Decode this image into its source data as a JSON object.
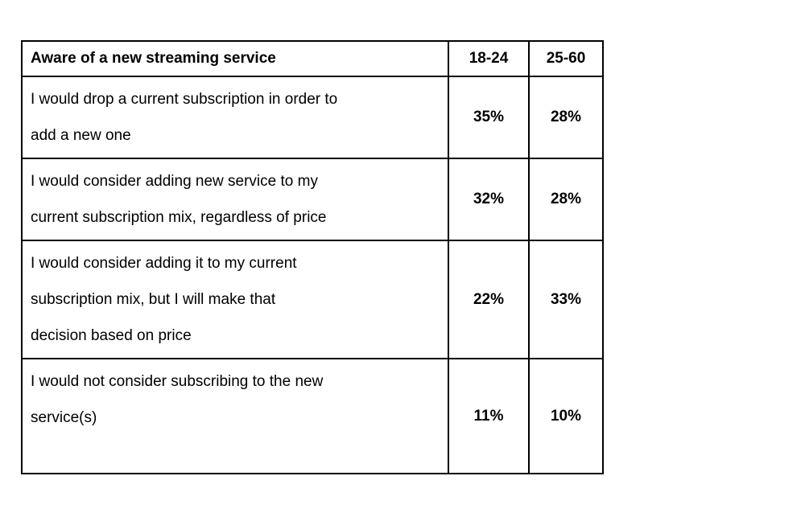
{
  "page": {
    "background_color": "#ffffff",
    "text_color": "#000000",
    "table_border_color": "#000000"
  },
  "table": {
    "header": {
      "question_label": "Aware of a new streaming service",
      "age_18_24": "18-24",
      "age_25_60": "25-60"
    },
    "rows": [
      {
        "label": "I would drop a current subscription in order to\nadd a new one",
        "age_18_24": "35%",
        "age_25_60": "28%"
      },
      {
        "label": "I would consider adding new service to my\ncurrent subscription mix, regardless of price",
        "age_18_24": "32%",
        "age_25_60": "28%"
      },
      {
        "label": "I would consider adding it to my current\nsubscription mix, but I will make that\ndecision based on price",
        "age_18_24": "22%",
        "age_25_60": "33%"
      },
      {
        "label": "I would not consider subscribing to the new\nservice(s)",
        "age_18_24": "11%",
        "age_25_60": "10%"
      }
    ]
  }
}
